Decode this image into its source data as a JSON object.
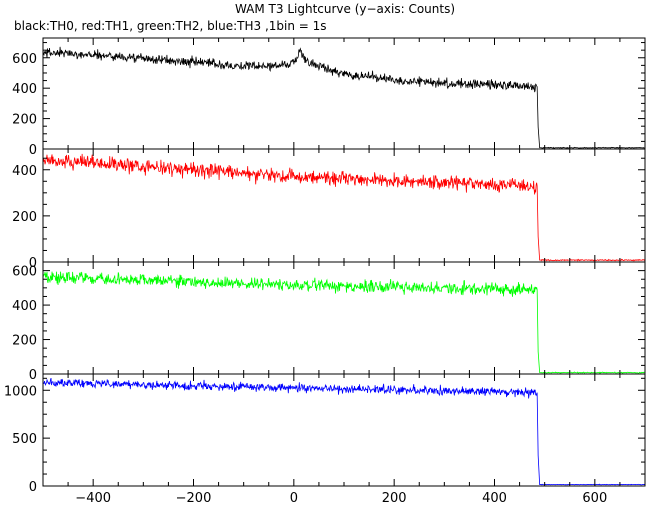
{
  "title": "WAM T3 Lightcurve (y−axis: Counts)",
  "subtitle": "black:TH0, red:TH1, green:TH2, blue:TH3 ,1bin = 1s",
  "chart_data": {
    "type": "line",
    "xlim": [
      -500,
      700
    ],
    "x_ticks": [
      -400,
      -200,
      0,
      200,
      400,
      600
    ],
    "x_tick_labels": [
      "−400",
      "−200",
      "0",
      "200",
      "400",
      "600"
    ],
    "panels": [
      {
        "series_name": "TH0",
        "color": "#000000",
        "ylim": [
          0,
          730
        ],
        "y_ticks": [
          0,
          200,
          400,
          600
        ],
        "points": [
          [
            -500,
            635
          ],
          [
            -400,
            620
          ],
          [
            -300,
            595
          ],
          [
            -200,
            570
          ],
          [
            -100,
            545
          ],
          [
            -40,
            545
          ],
          [
            0,
            570
          ],
          [
            12,
            640
          ],
          [
            30,
            565
          ],
          [
            100,
            495
          ],
          [
            200,
            455
          ],
          [
            300,
            435
          ],
          [
            400,
            420
          ],
          [
            485,
            410
          ],
          [
            487,
            145
          ],
          [
            490,
            8
          ],
          [
            700,
            8
          ]
        ],
        "noise": 22
      },
      {
        "series_name": "TH1",
        "color": "#ff0000",
        "ylim": [
          0,
          490
        ],
        "y_ticks": [
          0,
          200,
          400
        ],
        "points": [
          [
            -500,
            440
          ],
          [
            -400,
            430
          ],
          [
            -300,
            415
          ],
          [
            -200,
            400
          ],
          [
            -100,
            385
          ],
          [
            0,
            370
          ],
          [
            100,
            360
          ],
          [
            200,
            350
          ],
          [
            300,
            345
          ],
          [
            400,
            335
          ],
          [
            485,
            330
          ],
          [
            487,
            110
          ],
          [
            490,
            8
          ],
          [
            700,
            8
          ]
        ],
        "noise": 22
      },
      {
        "series_name": "TH2",
        "color": "#00ff00",
        "ylim": [
          0,
          650
        ],
        "y_ticks": [
          0,
          200,
          400,
          600
        ],
        "points": [
          [
            -500,
            565
          ],
          [
            -400,
            555
          ],
          [
            -300,
            545
          ],
          [
            -200,
            535
          ],
          [
            -100,
            525
          ],
          [
            0,
            515
          ],
          [
            100,
            510
          ],
          [
            200,
            505
          ],
          [
            300,
            500
          ],
          [
            400,
            495
          ],
          [
            485,
            490
          ],
          [
            487,
            130
          ],
          [
            490,
            8
          ],
          [
            700,
            8
          ]
        ],
        "noise": 25
      },
      {
        "series_name": "TH3",
        "color": "#0000ff",
        "ylim": [
          0,
          1170
        ],
        "y_ticks": [
          0,
          500,
          1000
        ],
        "points": [
          [
            -500,
            1085
          ],
          [
            -400,
            1075
          ],
          [
            -300,
            1060
          ],
          [
            -200,
            1045
          ],
          [
            -100,
            1035
          ],
          [
            0,
            1025
          ],
          [
            100,
            1015
          ],
          [
            200,
            1005
          ],
          [
            300,
            995
          ],
          [
            400,
            985
          ],
          [
            485,
            975
          ],
          [
            487,
            320
          ],
          [
            490,
            15
          ],
          [
            700,
            15
          ]
        ],
        "noise": 32
      }
    ]
  }
}
